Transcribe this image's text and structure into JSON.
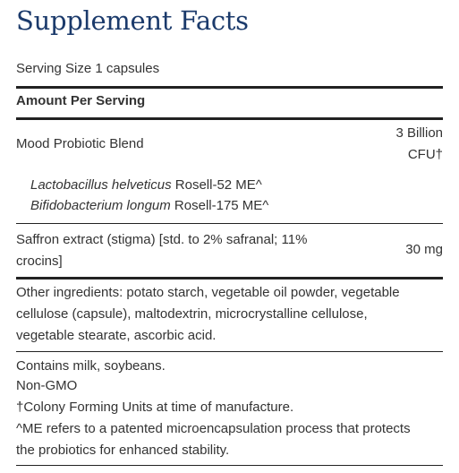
{
  "title": "Supplement Facts",
  "serving_size": "Serving Size 1 capsules",
  "amount_header": "Amount Per Serving",
  "rows": [
    {
      "name": "Mood Probiotic Blend",
      "amount_line1": "3 Billion",
      "amount_line2": "CFU†",
      "sub_items": [
        {
          "species": "Lactobacillus helveticus",
          "strain": "Rosell-52 ME^"
        },
        {
          "species": "Bifidobacterium longum",
          "strain": "Rosell-175 ME^"
        }
      ]
    },
    {
      "name_line1": "Saffron extract (stigma) [std. to 2% safranal; 11%",
      "name_line2": "crocins]",
      "amount": "30 mg"
    }
  ],
  "other_ingredients": [
    "Other ingredients: potato starch, vegetable oil powder, vegetable",
    "cellulose (capsule), maltodextrin, microcrystalline cellulose,",
    "vegetable stearate, ascorbic acid."
  ],
  "notes": [
    "Contains milk, soybeans.",
    "Non-GMO",
    "†Colony Forming Units at time of manufacture.",
    "^ME refers to a patented microencapsulation process that protects",
    "the probiotics for enhanced stability."
  ]
}
